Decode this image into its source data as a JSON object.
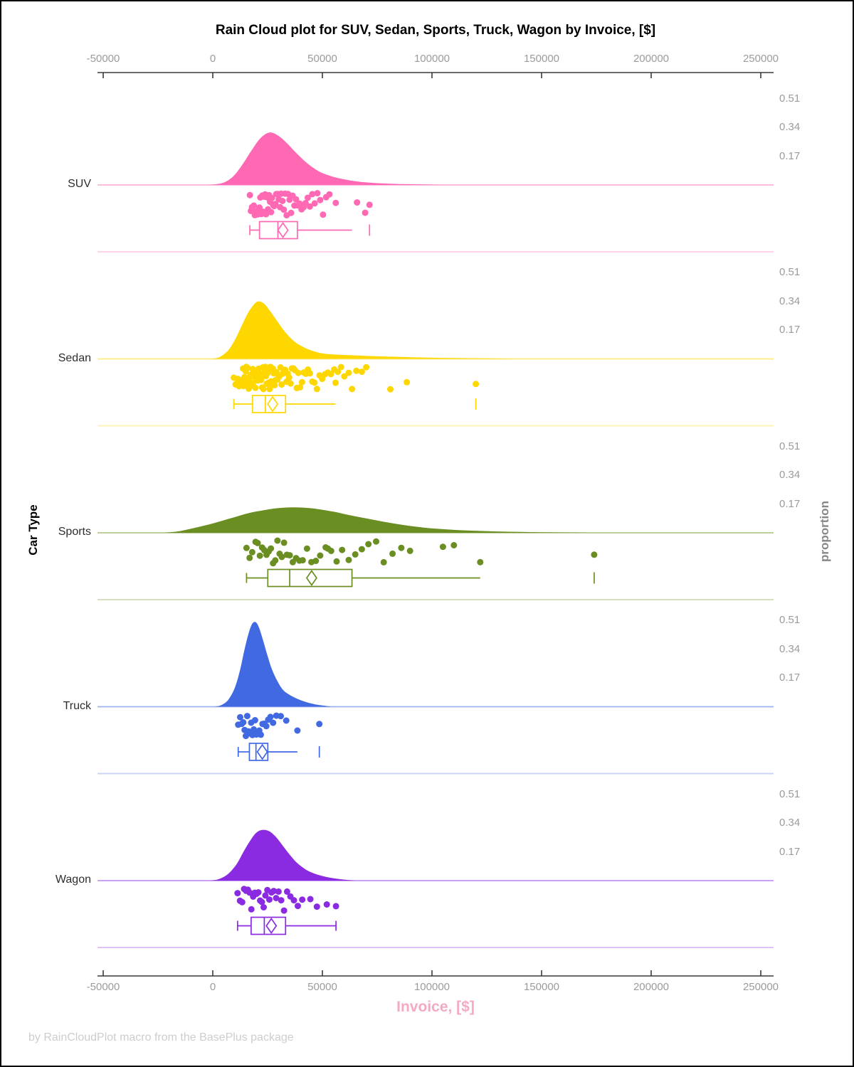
{
  "title": "Rain Cloud plot for SUV, Sedan, Sports, Truck, Wagon by Invoice, [$]",
  "footer": "by RainCloudPlot macro from the BasePlus package",
  "x_axis": {
    "label": "Invoice, [$]",
    "label_color": "#f5a9c5",
    "tick_labels": [
      "-50000",
      "0",
      "50000",
      "100000",
      "150000",
      "200000",
      "250000"
    ],
    "tick_values": [
      -50000,
      0,
      50000,
      100000,
      150000,
      200000,
      250000
    ],
    "range": [
      -50000,
      250000
    ]
  },
  "y_axis_left": {
    "label": "Car Type"
  },
  "y_axis_right": {
    "label": "proportion",
    "tick_values": [
      0.51,
      0.34,
      0.17
    ]
  },
  "chart_data": {
    "type": "raincloud",
    "xlabel": "Invoice, [$]",
    "ylabel_left": "Car Type",
    "ylabel_right": "proportion",
    "x_range": [
      -50000,
      250000
    ],
    "proportion_ticks": [
      0.51,
      0.34,
      0.17
    ],
    "series": [
      {
        "name": "SUV",
        "color": "#FF69B4",
        "density": [
          [
            -2000,
            0
          ],
          [
            2000,
            0.005
          ],
          [
            6000,
            0.02
          ],
          [
            10000,
            0.06
          ],
          [
            14000,
            0.13
          ],
          [
            18000,
            0.21
          ],
          [
            22000,
            0.28
          ],
          [
            26000,
            0.31
          ],
          [
            30000,
            0.29
          ],
          [
            34000,
            0.245
          ],
          [
            38000,
            0.19
          ],
          [
            42000,
            0.14
          ],
          [
            46000,
            0.1
          ],
          [
            50000,
            0.07
          ],
          [
            55000,
            0.048
          ],
          [
            60000,
            0.033
          ],
          [
            65000,
            0.022
          ],
          [
            70000,
            0.015
          ],
          [
            76000,
            0.01
          ],
          [
            84000,
            0.006
          ],
          [
            95000,
            0.003
          ],
          [
            105000,
            0
          ]
        ],
        "box": {
          "whisker_low": 16900,
          "q1": 21300,
          "median": 29700,
          "q3": 38600,
          "whisker_high": 63500,
          "mean": 32000,
          "outlier_tick": 71500,
          "right_cap": false
        },
        "points": [
          16900,
          17400,
          17900,
          18300,
          18700,
          19200,
          19600,
          20100,
          20500,
          20900,
          21300,
          21700,
          22100,
          22600,
          23000,
          23400,
          23900,
          24300,
          24800,
          25200,
          25700,
          26100,
          26600,
          27000,
          27500,
          28000,
          28500,
          29000,
          29600,
          30100,
          30700,
          31200,
          31800,
          32400,
          33000,
          33700,
          34300,
          35000,
          35700,
          36400,
          37200,
          38000,
          38800,
          39600,
          40500,
          41400,
          42300,
          43300,
          44300,
          45400,
          46500,
          47700,
          49000,
          50300,
          51700,
          53200,
          56100,
          65800,
          69500,
          71500
        ]
      },
      {
        "name": "Sedan",
        "color": "#FFD700",
        "density": [
          [
            -1000,
            0
          ],
          [
            3000,
            0.01
          ],
          [
            7000,
            0.05
          ],
          [
            10000,
            0.11
          ],
          [
            13000,
            0.19
          ],
          [
            16000,
            0.27
          ],
          [
            19000,
            0.325
          ],
          [
            21000,
            0.34
          ],
          [
            23500,
            0.325
          ],
          [
            26000,
            0.285
          ],
          [
            29000,
            0.23
          ],
          [
            32000,
            0.175
          ],
          [
            35000,
            0.13
          ],
          [
            38000,
            0.095
          ],
          [
            42000,
            0.065
          ],
          [
            46000,
            0.045
          ],
          [
            50000,
            0.032
          ],
          [
            55000,
            0.026
          ],
          [
            60000,
            0.023
          ],
          [
            66000,
            0.02
          ],
          [
            74000,
            0.016
          ],
          [
            84000,
            0.012
          ],
          [
            96000,
            0.008
          ],
          [
            110000,
            0.005
          ],
          [
            124000,
            0.003
          ],
          [
            138000,
            0
          ]
        ],
        "box": {
          "whisker_low": 9600,
          "q1": 18100,
          "median": 24000,
          "q3": 33200,
          "whisker_high": 56000,
          "mean": 27300,
          "outlier_tick": 120000,
          "right_cap": false
        },
        "points": [
          9600,
          10400,
          11000,
          11500,
          12000,
          12400,
          12800,
          13200,
          13500,
          13800,
          14100,
          14400,
          14700,
          15000,
          15300,
          15600,
          15900,
          16100,
          16400,
          16700,
          16900,
          17200,
          17400,
          17700,
          17900,
          18200,
          18400,
          18700,
          18900,
          19200,
          19400,
          19700,
          19900,
          20200,
          20400,
          20700,
          20900,
          21200,
          21400,
          21700,
          22000,
          22200,
          22500,
          22800,
          23100,
          23400,
          23700,
          24000,
          24300,
          24600,
          24900,
          25200,
          25600,
          25900,
          26300,
          26600,
          27000,
          27400,
          27800,
          28200,
          28600,
          29000,
          29500,
          29900,
          30400,
          30900,
          31400,
          31900,
          32500,
          33000,
          33600,
          34200,
          34800,
          35500,
          36100,
          36800,
          37500,
          38300,
          39000,
          39800,
          40700,
          41500,
          42400,
          43400,
          44300,
          45400,
          46400,
          47500,
          48700,
          49900,
          51200,
          52500,
          53900,
          55400,
          56000,
          57000,
          58500,
          60000,
          62000,
          63500,
          65500,
          68000,
          70000,
          81000,
          88500,
          120000
        ]
      },
      {
        "name": "Sports",
        "color": "#6B8E23",
        "density": [
          [
            -22000,
            0
          ],
          [
            -15000,
            0.01
          ],
          [
            -8000,
            0.03
          ],
          [
            0,
            0.055
          ],
          [
            8000,
            0.085
          ],
          [
            16000,
            0.115
          ],
          [
            24000,
            0.135
          ],
          [
            30000,
            0.146
          ],
          [
            36000,
            0.15
          ],
          [
            42000,
            0.148
          ],
          [
            48000,
            0.14
          ],
          [
            55000,
            0.125
          ],
          [
            62000,
            0.105
          ],
          [
            70000,
            0.085
          ],
          [
            78000,
            0.065
          ],
          [
            86000,
            0.048
          ],
          [
            94000,
            0.034
          ],
          [
            102000,
            0.024
          ],
          [
            112000,
            0.016
          ],
          [
            122000,
            0.011
          ],
          [
            132000,
            0.007
          ],
          [
            144000,
            0.004
          ],
          [
            158000,
            0.002
          ],
          [
            172000,
            0
          ]
        ],
        "box": {
          "whisker_low": 15400,
          "q1": 25100,
          "median": 35100,
          "q3": 63500,
          "whisker_high": 122000,
          "mean": 45100,
          "outlier_tick": 174000,
          "right_cap": false
        },
        "points": [
          15400,
          16800,
          18000,
          19500,
          20500,
          21500,
          22500,
          23500,
          24500,
          25500,
          26500,
          27500,
          28500,
          29500,
          30500,
          31500,
          32500,
          33800,
          35100,
          36500,
          38000,
          39500,
          41000,
          43000,
          45000,
          47000,
          49000,
          51500,
          52500,
          54000,
          56500,
          59000,
          62000,
          65000,
          68000,
          71000,
          74500,
          78000,
          82000,
          86000,
          90000,
          105000,
          110000,
          122000,
          174000
        ]
      },
      {
        "name": "Truck",
        "color": "#4169E1",
        "density": [
          [
            1000,
            0
          ],
          [
            4000,
            0.01
          ],
          [
            7000,
            0.04
          ],
          [
            10000,
            0.11
          ],
          [
            12500,
            0.22
          ],
          [
            14500,
            0.34
          ],
          [
            16500,
            0.44
          ],
          [
            18000,
            0.49
          ],
          [
            19500,
            0.5
          ],
          [
            21000,
            0.47
          ],
          [
            23000,
            0.39
          ],
          [
            25000,
            0.3
          ],
          [
            27000,
            0.22
          ],
          [
            29500,
            0.15
          ],
          [
            32000,
            0.1
          ],
          [
            35000,
            0.07
          ],
          [
            38000,
            0.05
          ],
          [
            41000,
            0.034
          ],
          [
            44000,
            0.022
          ],
          [
            47000,
            0.013
          ],
          [
            50000,
            0.007
          ],
          [
            54000,
            0
          ]
        ],
        "box": {
          "whisker_low": 11600,
          "q1": 16700,
          "median": 19700,
          "q3": 25100,
          "whisker_high": 38600,
          "mean": 22600,
          "outlier_tick": 48600,
          "right_cap": false
        },
        "points": [
          11600,
          12500,
          13200,
          13900,
          14500,
          15100,
          15700,
          16300,
          16900,
          17500,
          18100,
          18700,
          19300,
          19900,
          20500,
          21200,
          21900,
          22700,
          23500,
          24400,
          25300,
          26300,
          27500,
          29000,
          31000,
          33500,
          38600,
          48600
        ]
      },
      {
        "name": "Wagon",
        "color": "#8A2BE2",
        "density": [
          [
            -1000,
            0
          ],
          [
            3000,
            0.01
          ],
          [
            7000,
            0.04
          ],
          [
            11000,
            0.1
          ],
          [
            14000,
            0.17
          ],
          [
            17000,
            0.235
          ],
          [
            20000,
            0.285
          ],
          [
            23000,
            0.3
          ],
          [
            26000,
            0.29
          ],
          [
            29000,
            0.255
          ],
          [
            32000,
            0.205
          ],
          [
            35000,
            0.155
          ],
          [
            38000,
            0.11
          ],
          [
            41000,
            0.078
          ],
          [
            44000,
            0.054
          ],
          [
            48000,
            0.035
          ],
          [
            52000,
            0.021
          ],
          [
            56000,
            0.012
          ],
          [
            60000,
            0.006
          ],
          [
            65000,
            0
          ]
        ],
        "box": {
          "whisker_low": 11300,
          "q1": 17500,
          "median": 23500,
          "q3": 33200,
          "whisker_high": 56200,
          "mean": 26700,
          "outlier_tick": null,
          "right_cap": true
        },
        "points": [
          11300,
          12400,
          13400,
          14300,
          15200,
          16000,
          16800,
          17600,
          18400,
          19200,
          20000,
          20800,
          21600,
          22400,
          23200,
          24000,
          24900,
          25800,
          26800,
          27800,
          28900,
          30000,
          31200,
          32500,
          33900,
          35400,
          37000,
          38800,
          40800,
          44500,
          47500,
          52000,
          56200
        ]
      }
    ]
  }
}
